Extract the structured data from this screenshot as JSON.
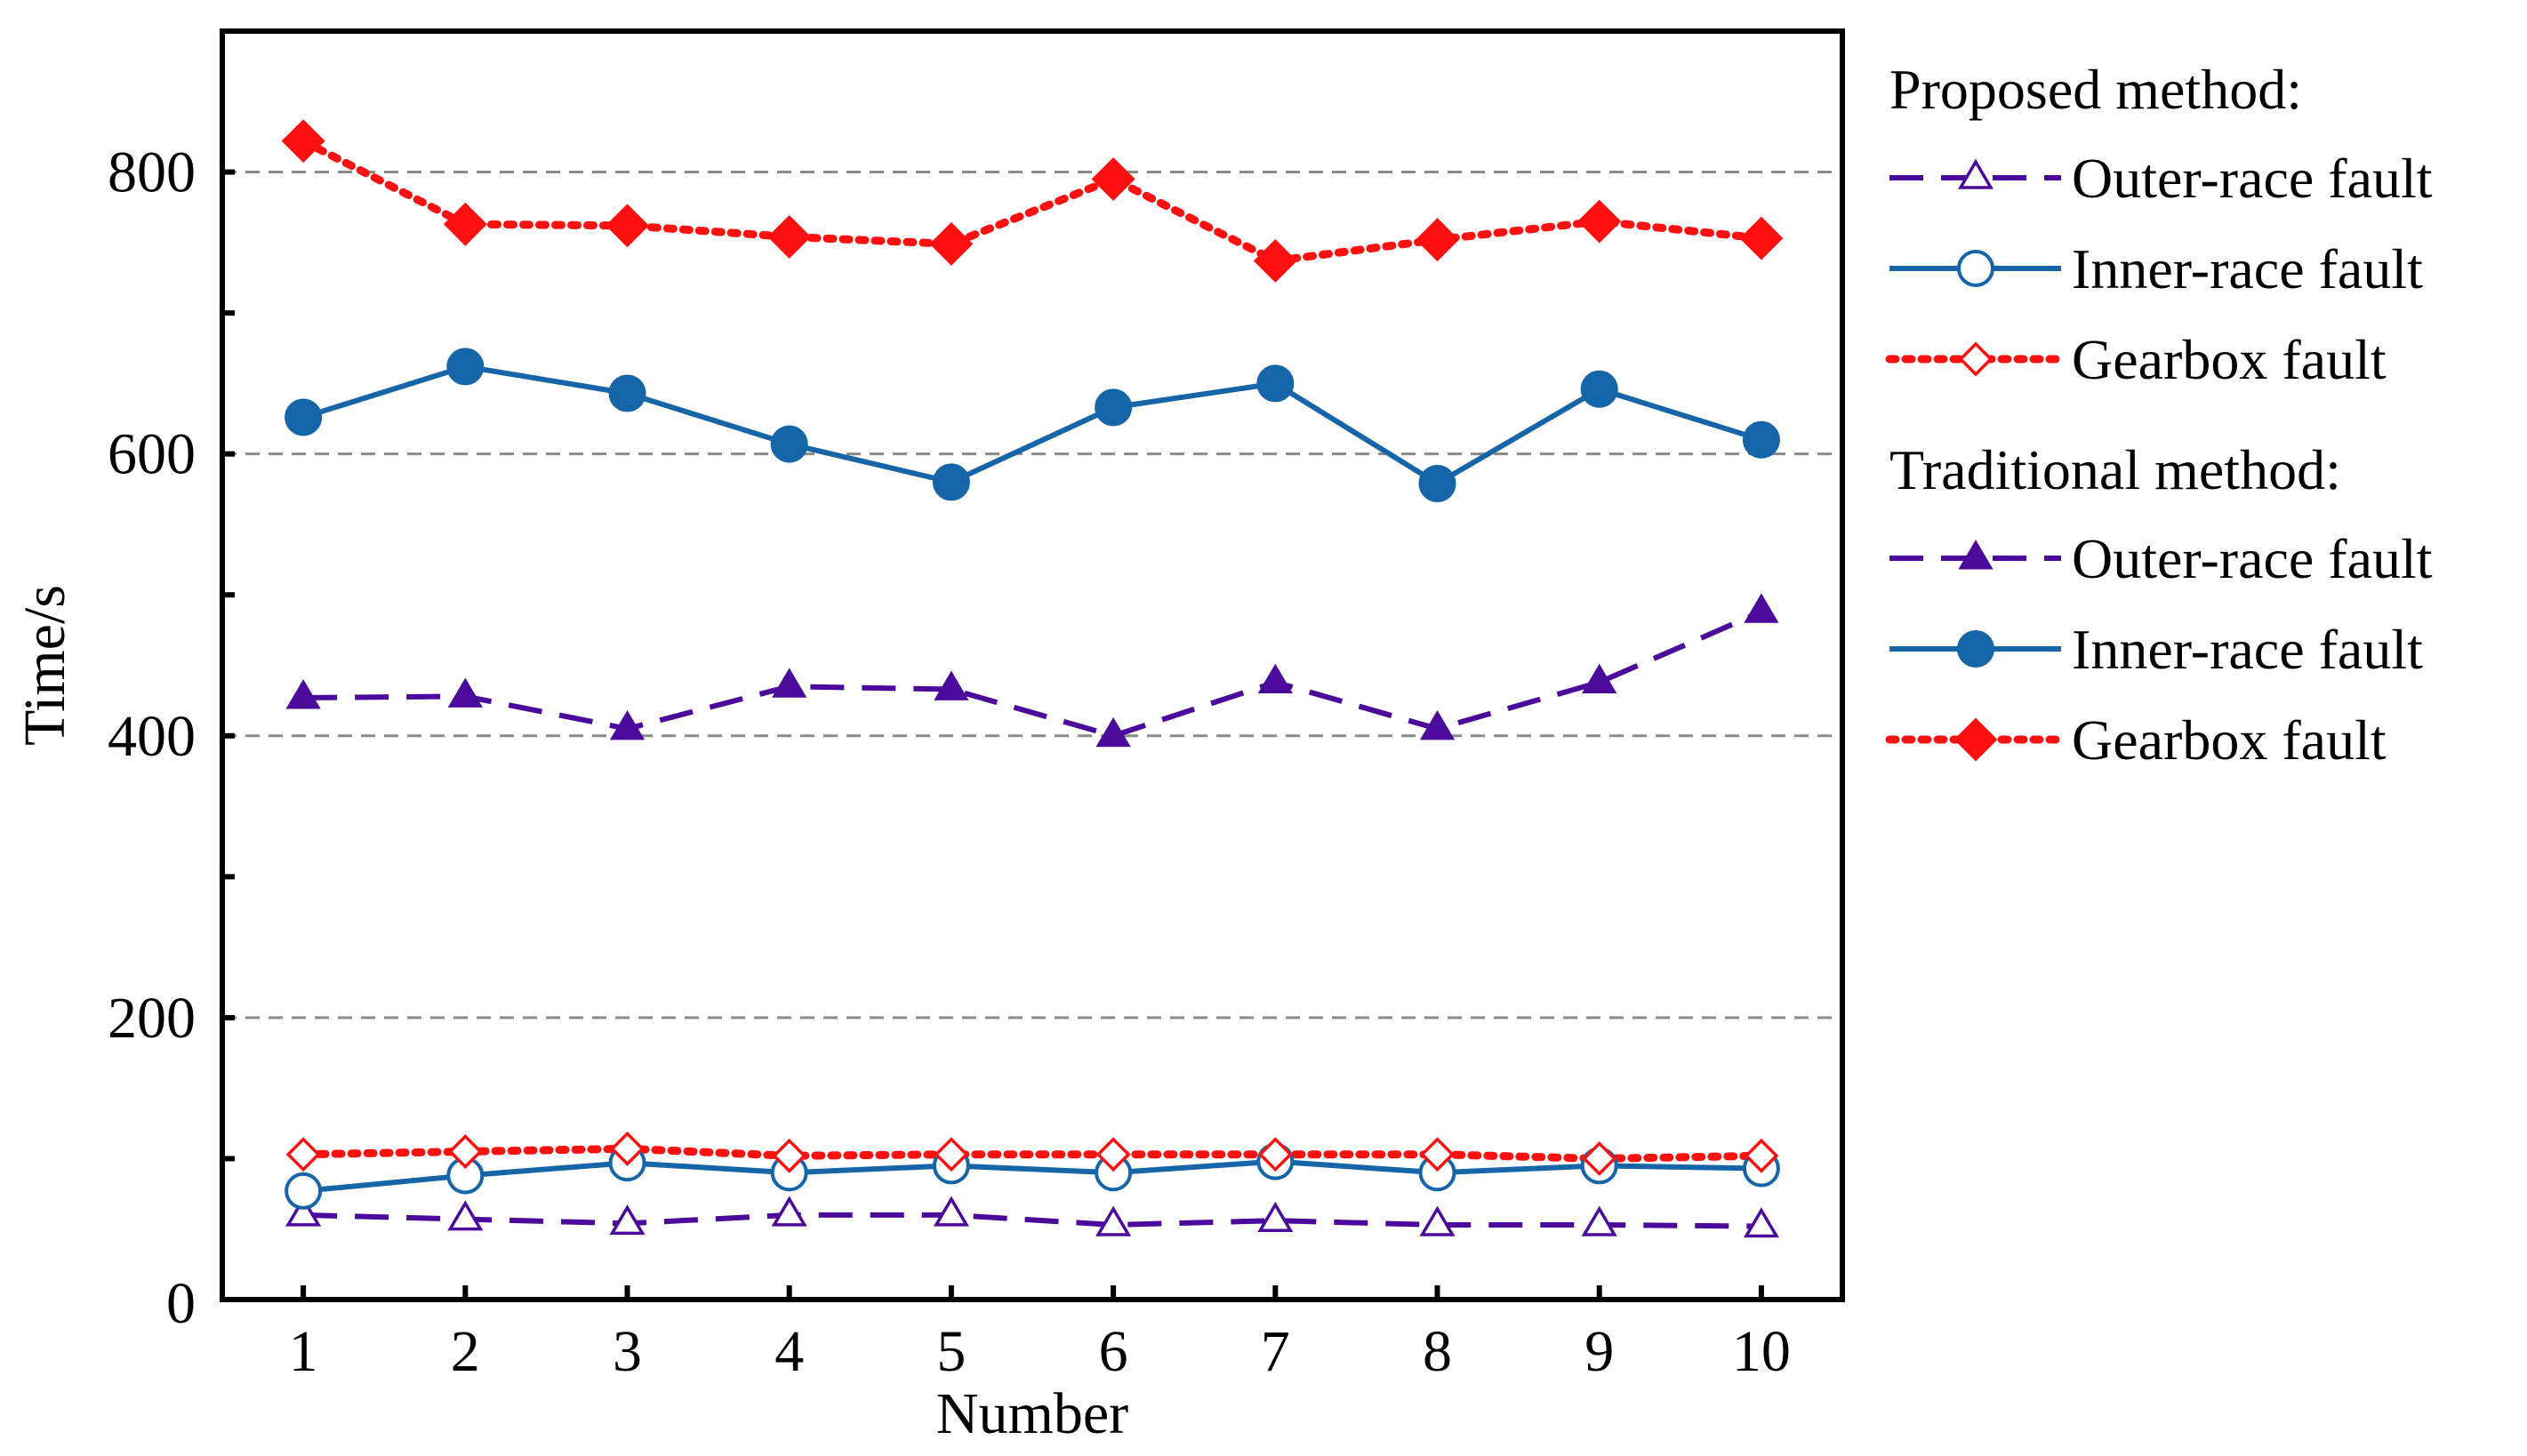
{
  "chart_data": {
    "type": "line",
    "title": "",
    "xlabel": "Number",
    "ylabel": "Time/s",
    "x": [
      1,
      2,
      3,
      4,
      5,
      6,
      7,
      8,
      9,
      10
    ],
    "xticks": [
      "1",
      "2",
      "3",
      "4",
      "5",
      "6",
      "7",
      "8",
      "9",
      "10"
    ],
    "yticks": [
      "0",
      "200",
      "400",
      "600",
      "800"
    ],
    "xlim": [
      0.5,
      10.5
    ],
    "ylim": [
      0,
      900
    ],
    "grid": "horizontal dashed at 200, 400, 600, 800",
    "legend_groups": [
      {
        "title": "Proposed method:",
        "series_names": [
          "Outer-race fault",
          "Inner-race fault",
          "Gearbox fault"
        ]
      },
      {
        "title": "Traditional method:",
        "series_names": [
          "Outer-race fault",
          "Inner-race fault",
          "Gearbox fault"
        ]
      }
    ],
    "series": [
      {
        "name": "Outer-race fault",
        "group": "Proposed method",
        "color": "#4b0a9c",
        "line": "dashed",
        "marker": "triangle",
        "filled": false,
        "values": [
          60,
          57,
          54,
          60,
          60,
          53,
          56,
          53,
          53,
          52
        ]
      },
      {
        "name": "Inner-race fault",
        "group": "Proposed method",
        "color": "#1565a8",
        "line": "solid",
        "marker": "circle",
        "filled": false,
        "values": [
          77,
          88,
          97,
          90,
          95,
          90,
          98,
          90,
          95,
          93
        ]
      },
      {
        "name": "Gearbox fault",
        "group": "Proposed method",
        "color": "#ff1010",
        "line": "dotted",
        "marker": "diamond",
        "filled": false,
        "values": [
          103,
          105,
          107,
          102,
          103,
          103,
          103,
          103,
          100,
          102
        ]
      },
      {
        "name": "Outer-race fault",
        "group": "Traditional method",
        "color": "#4b0a9c",
        "line": "dashed",
        "marker": "triangle",
        "filled": true,
        "values": [
          427,
          428,
          405,
          435,
          433,
          400,
          438,
          405,
          438,
          488
        ]
      },
      {
        "name": "Inner-race fault",
        "group": "Traditional method",
        "color": "#1565a8",
        "line": "solid",
        "marker": "circle",
        "filled": true,
        "values": [
          626,
          662,
          643,
          607,
          580,
          633,
          650,
          579,
          646,
          610
        ]
      },
      {
        "name": "Gearbox fault",
        "group": "Traditional method",
        "color": "#ff1010",
        "line": "dotted",
        "marker": "diamond",
        "filled": true,
        "values": [
          822,
          763,
          762,
          754,
          749,
          795,
          737,
          752,
          765,
          753
        ]
      }
    ]
  }
}
